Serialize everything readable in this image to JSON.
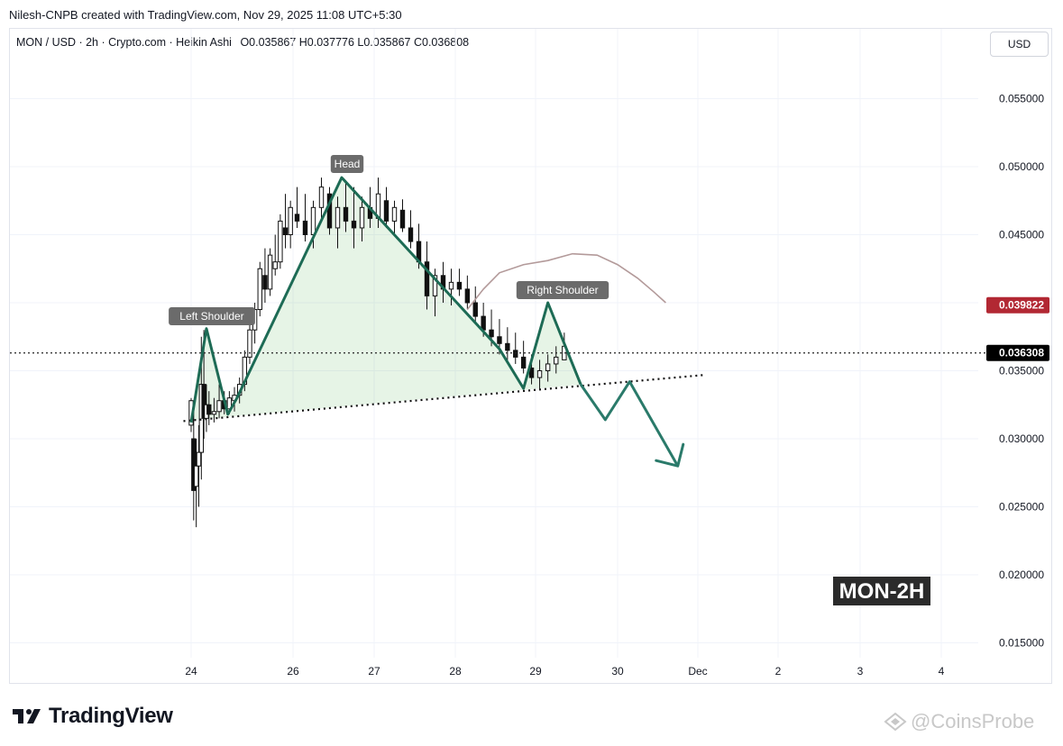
{
  "header": {
    "credit": "Nilesh-CNPB created with TradingView.com, Nov 29, 2025 11:08 UTC+5:30",
    "symbol_line": "MON / USD · 2h · Crypto.com · Heikin Ashi",
    "ohlc": "O0.035867  H0.037776  L0.035867  C0.036808",
    "currency_button": "USD"
  },
  "chart_data": {
    "type": "candlestick",
    "y_ticks": [
      "0.055000",
      "0.050000",
      "0.045000",
      "0.035000",
      "0.030000",
      "0.025000",
      "0.020000",
      "0.015000"
    ],
    "y_tick_values": [
      0.055,
      0.05,
      0.045,
      0.035,
      0.03,
      0.025,
      0.02,
      0.015
    ],
    "x_ticks": [
      "24",
      "26",
      "27",
      "28",
      "29",
      "30",
      "Dec",
      "2",
      "3",
      "4"
    ],
    "price_labels": [
      {
        "value": "0.039822",
        "color": "#b22833"
      },
      {
        "value": "0.036308",
        "color": "#000000"
      }
    ],
    "annotations": {
      "left_shoulder": "Left Shoulder",
      "head": "Head",
      "right_shoulder": "Right Shoulder",
      "title_box": "MON-2H"
    },
    "candles": [
      [
        24.0,
        0.031,
        0.033,
        0.0305,
        0.0328
      ],
      [
        24.05,
        0.03,
        0.032,
        0.024,
        0.0262
      ],
      [
        24.1,
        0.0265,
        0.03,
        0.0235,
        0.028
      ],
      [
        24.15,
        0.028,
        0.031,
        0.025,
        0.029
      ],
      [
        24.2,
        0.029,
        0.0375,
        0.027,
        0.034
      ],
      [
        24.25,
        0.034,
        0.038,
        0.03,
        0.0315
      ],
      [
        24.3,
        0.0315,
        0.034,
        0.0305,
        0.0325
      ],
      [
        24.35,
        0.0325,
        0.0335,
        0.031,
        0.0318
      ],
      [
        24.45,
        0.0318,
        0.033,
        0.0312,
        0.032
      ],
      [
        24.55,
        0.032,
        0.034,
        0.0315,
        0.0328
      ],
      [
        24.65,
        0.0328,
        0.0335,
        0.0318,
        0.0322
      ],
      [
        24.75,
        0.0322,
        0.0335,
        0.0318,
        0.033
      ],
      [
        24.85,
        0.0328,
        0.0338,
        0.032,
        0.0332
      ],
      [
        24.95,
        0.0332,
        0.0345,
        0.0326,
        0.034
      ],
      [
        25.05,
        0.034,
        0.0365,
        0.0335,
        0.036
      ],
      [
        25.15,
        0.036,
        0.0385,
        0.0355,
        0.038
      ],
      [
        25.25,
        0.038,
        0.04,
        0.037,
        0.0395
      ],
      [
        25.35,
        0.0395,
        0.043,
        0.039,
        0.0425
      ],
      [
        25.45,
        0.042,
        0.044,
        0.04,
        0.041
      ],
      [
        25.55,
        0.041,
        0.044,
        0.0405,
        0.0435
      ],
      [
        25.65,
        0.0425,
        0.045,
        0.042,
        0.043
      ],
      [
        25.75,
        0.043,
        0.0465,
        0.0425,
        0.046
      ],
      [
        25.85,
        0.0455,
        0.048,
        0.044,
        0.045
      ],
      [
        25.95,
        0.045,
        0.0475,
        0.044,
        0.047
      ],
      [
        26.05,
        0.0465,
        0.0485,
        0.0455,
        0.046
      ],
      [
        26.15,
        0.046,
        0.048,
        0.0445,
        0.045
      ],
      [
        26.25,
        0.045,
        0.0475,
        0.044,
        0.047
      ],
      [
        26.35,
        0.047,
        0.0492,
        0.046,
        0.0485
      ],
      [
        26.45,
        0.048,
        0.0485,
        0.045,
        0.0455
      ],
      [
        26.55,
        0.0455,
        0.0478,
        0.044,
        0.047
      ],
      [
        26.65,
        0.047,
        0.049,
        0.0452,
        0.046
      ],
      [
        26.75,
        0.046,
        0.0485,
        0.044,
        0.0455
      ],
      [
        26.85,
        0.0455,
        0.0478,
        0.0445,
        0.047
      ],
      [
        26.95,
        0.047,
        0.0485,
        0.0455,
        0.0462
      ],
      [
        27.05,
        0.0462,
        0.0492,
        0.0455,
        0.048
      ],
      [
        27.15,
        0.0475,
        0.0485,
        0.0455,
        0.046
      ],
      [
        27.25,
        0.046,
        0.0475,
        0.045,
        0.047
      ],
      [
        27.35,
        0.0468,
        0.0476,
        0.0452,
        0.0455
      ],
      [
        27.45,
        0.0455,
        0.0468,
        0.044,
        0.0445
      ],
      [
        27.55,
        0.0445,
        0.0458,
        0.0425,
        0.043
      ],
      [
        27.65,
        0.043,
        0.0445,
        0.0395,
        0.0405
      ],
      [
        27.75,
        0.0405,
        0.0425,
        0.039,
        0.042
      ],
      [
        27.85,
        0.042,
        0.043,
        0.04,
        0.041
      ],
      [
        27.95,
        0.041,
        0.0425,
        0.0398,
        0.0415
      ],
      [
        28.05,
        0.0415,
        0.0425,
        0.0405,
        0.041
      ],
      [
        28.15,
        0.041,
        0.042,
        0.0395,
        0.04
      ],
      [
        28.25,
        0.04,
        0.0412,
        0.0385,
        0.039
      ],
      [
        28.35,
        0.039,
        0.04,
        0.0375,
        0.038
      ],
      [
        28.45,
        0.038,
        0.0395,
        0.0368,
        0.0375
      ],
      [
        28.55,
        0.0375,
        0.0388,
        0.0362,
        0.037
      ],
      [
        28.65,
        0.037,
        0.0382,
        0.0358,
        0.0365
      ],
      [
        28.75,
        0.0365,
        0.0378,
        0.0355,
        0.036
      ],
      [
        28.85,
        0.036,
        0.0372,
        0.0348,
        0.0352
      ],
      [
        28.95,
        0.0352,
        0.0362,
        0.034,
        0.0345
      ],
      [
        29.05,
        0.0345,
        0.0358,
        0.0336,
        0.035
      ],
      [
        29.15,
        0.035,
        0.0362,
        0.0342,
        0.0355
      ],
      [
        29.25,
        0.0355,
        0.0368,
        0.0348,
        0.036
      ],
      [
        29.35,
        0.0358,
        0.0378,
        0.0358,
        0.0368
      ]
    ],
    "moving_average": [
      [
        28.15,
        0.0395
      ],
      [
        28.35,
        0.041
      ],
      [
        28.55,
        0.0422
      ],
      [
        28.85,
        0.0428
      ],
      [
        29.15,
        0.0431
      ],
      [
        29.45,
        0.0436
      ],
      [
        29.75,
        0.0435
      ],
      [
        30.0,
        0.0428
      ],
      [
        30.25,
        0.0418
      ],
      [
        30.45,
        0.0408
      ],
      [
        30.6,
        0.04
      ]
    ],
    "pattern_path": [
      [
        24.0,
        0.0312
      ],
      [
        24.3,
        0.0381
      ],
      [
        24.72,
        0.0318
      ],
      [
        24.9,
        0.033
      ],
      [
        26.6,
        0.0492
      ],
      [
        28.55,
        0.0366
      ],
      [
        28.85,
        0.0337
      ],
      [
        29.15,
        0.04
      ],
      [
        29.55,
        0.034
      ]
    ],
    "projection_path": [
      [
        29.55,
        0.034
      ],
      [
        29.85,
        0.0314
      ],
      [
        30.15,
        0.0342
      ],
      [
        30.75,
        0.028
      ]
    ],
    "neckline": [
      [
        23.85,
        0.0313
      ],
      [
        31.1,
        0.0347
      ]
    ],
    "current_price": 0.036308
  }
}
